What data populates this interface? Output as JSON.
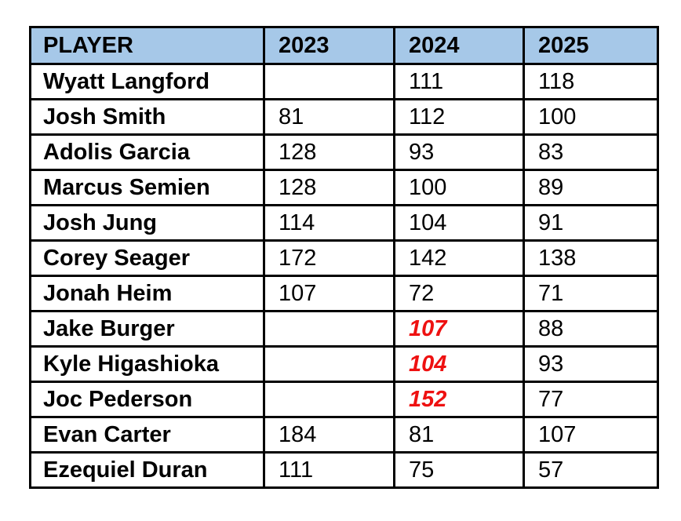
{
  "colors": {
    "header_bg": "#a6c8e8",
    "red_highlight": "#ee1111",
    "border": "#000000",
    "background": "#ffffff"
  },
  "table": {
    "columns": [
      "PLAYER",
      "2023",
      "2024",
      "2025"
    ],
    "rows": [
      {
        "player": "Wyatt Langford",
        "values": [
          {
            "text": ""
          },
          {
            "text": "111"
          },
          {
            "text": "118"
          }
        ]
      },
      {
        "player": "Josh Smith",
        "values": [
          {
            "text": "81"
          },
          {
            "text": "112"
          },
          {
            "text": "100"
          }
        ]
      },
      {
        "player": "Adolis Garcia",
        "values": [
          {
            "text": "128"
          },
          {
            "text": "93"
          },
          {
            "text": "83"
          }
        ]
      },
      {
        "player": "Marcus Semien",
        "values": [
          {
            "text": "128"
          },
          {
            "text": "100"
          },
          {
            "text": "89"
          }
        ]
      },
      {
        "player": "Josh Jung",
        "values": [
          {
            "text": "114"
          },
          {
            "text": "104"
          },
          {
            "text": "91"
          }
        ]
      },
      {
        "player": "Corey Seager",
        "values": [
          {
            "text": "172"
          },
          {
            "text": "142"
          },
          {
            "text": "138"
          }
        ]
      },
      {
        "player": "Jonah Heim",
        "values": [
          {
            "text": "107"
          },
          {
            "text": "72"
          },
          {
            "text": "71"
          }
        ]
      },
      {
        "player": "Jake Burger",
        "values": [
          {
            "text": ""
          },
          {
            "text": "107",
            "red": true
          },
          {
            "text": "88"
          }
        ]
      },
      {
        "player": "Kyle Higashioka",
        "values": [
          {
            "text": ""
          },
          {
            "text": "104",
            "red": true
          },
          {
            "text": "93"
          }
        ]
      },
      {
        "player": "Joc Pederson",
        "values": [
          {
            "text": ""
          },
          {
            "text": "152",
            "red": true
          },
          {
            "text": "77"
          }
        ]
      },
      {
        "player": "Evan Carter",
        "values": [
          {
            "text": "184"
          },
          {
            "text": "81"
          },
          {
            "text": "107"
          }
        ]
      },
      {
        "player": "Ezequiel Duran",
        "values": [
          {
            "text": "111"
          },
          {
            "text": "75"
          },
          {
            "text": "57"
          }
        ]
      }
    ]
  },
  "chart_data": {
    "type": "table",
    "title": "",
    "columns": [
      "PLAYER",
      "2023",
      "2024",
      "2025"
    ],
    "rows": [
      [
        "Wyatt Langford",
        null,
        111,
        118
      ],
      [
        "Josh Smith",
        81,
        112,
        100
      ],
      [
        "Adolis Garcia",
        128,
        93,
        83
      ],
      [
        "Marcus Semien",
        128,
        100,
        89
      ],
      [
        "Josh Jung",
        114,
        104,
        91
      ],
      [
        "Corey Seager",
        172,
        142,
        138
      ],
      [
        "Jonah Heim",
        107,
        72,
        71
      ],
      [
        "Jake Burger",
        null,
        107,
        88
      ],
      [
        "Kyle Higashioka",
        null,
        104,
        93
      ],
      [
        "Joc Pederson",
        null,
        152,
        77
      ],
      [
        "Evan Carter",
        184,
        81,
        107
      ],
      [
        "Ezequiel Duran",
        111,
        75,
        57
      ]
    ],
    "highlighted_red_italic_2024": [
      "Jake Burger",
      "Kyle Higashioka",
      "Joc Pederson"
    ],
    "layout_hints": {
      "header_background": "#a6c8e8",
      "grid": "solid black borders",
      "player_names_bold": true
    }
  }
}
